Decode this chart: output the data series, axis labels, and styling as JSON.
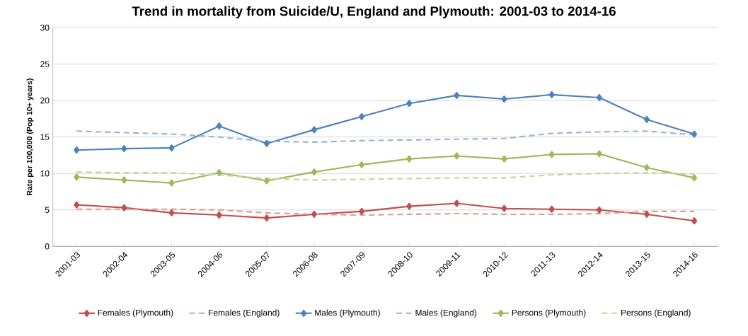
{
  "chart_data": {
    "type": "line",
    "title": "Trend in mortality from Suicide/U, England and Plymouth: 2001-03 to 2014-16",
    "ylabel": "Rate per 100,000 (Pop 10+ years)",
    "categories": [
      "2001-03",
      "2002-04",
      "2003-05",
      "2004-06",
      "2005-07",
      "2006-08",
      "2007-09",
      "2008-10",
      "2009-11",
      "2010-12",
      "2011-13",
      "2012-14",
      "2013-15",
      "2014-16"
    ],
    "series": [
      {
        "name": "Females (Plymouth)",
        "color": "#c0504d",
        "marker": "diamond",
        "line_style": "solid",
        "values": [
          5.7,
          5.3,
          4.6,
          4.3,
          3.9,
          4.4,
          4.8,
          5.5,
          5.9,
          5.2,
          5.1,
          5.0,
          4.4,
          3.5
        ]
      },
      {
        "name": "Females (England)",
        "color": "#e09a98",
        "marker": "none",
        "line_style": "dashed",
        "values": [
          5.1,
          5.1,
          5.1,
          5.0,
          4.6,
          4.4,
          4.3,
          4.4,
          4.5,
          4.4,
          4.4,
          4.5,
          4.8,
          4.8
        ]
      },
      {
        "name": "Males (Plymouth)",
        "color": "#4f81bd",
        "marker": "diamond",
        "line_style": "solid",
        "values": [
          13.2,
          13.4,
          13.5,
          16.5,
          14.1,
          16.0,
          17.8,
          19.6,
          20.7,
          20.2,
          20.8,
          20.4,
          17.4,
          15.4
        ]
      },
      {
        "name": "Males (England)",
        "color": "#95b3d7",
        "marker": "none",
        "line_style": "dashed",
        "values": [
          15.8,
          15.6,
          15.4,
          15.0,
          14.4,
          14.3,
          14.5,
          14.6,
          14.7,
          14.8,
          15.5,
          15.7,
          15.8,
          15.3
        ]
      },
      {
        "name": "Persons (Plymouth)",
        "color": "#9bbb59",
        "marker": "diamond",
        "line_style": "solid",
        "values": [
          9.5,
          9.1,
          8.7,
          10.1,
          9.0,
          10.2,
          11.2,
          12.0,
          12.4,
          12.0,
          12.6,
          12.7,
          10.8,
          9.4
        ]
      },
      {
        "name": "Persons (England)",
        "color": "#c3d69b",
        "marker": "none",
        "line_style": "dashed",
        "values": [
          10.2,
          10.1,
          10.1,
          9.8,
          9.3,
          9.1,
          9.2,
          9.3,
          9.4,
          9.4,
          9.8,
          10.0,
          10.1,
          9.9
        ]
      }
    ],
    "ylim": [
      0,
      30
    ],
    "yticks": [
      0,
      5,
      10,
      15,
      20,
      25,
      30
    ],
    "grid": "y",
    "legend": "bottom"
  }
}
